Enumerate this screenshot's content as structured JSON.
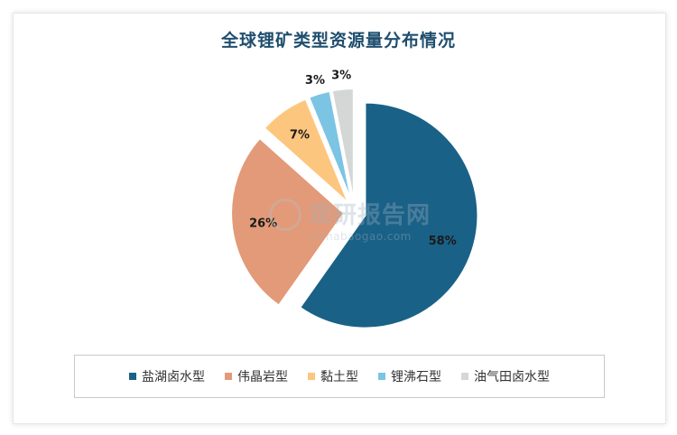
{
  "chart_data": {
    "type": "pie",
    "title": "全球锂矿类型资源量分布情况",
    "categories": [
      "盐湖卤水型",
      "伟晶岩型",
      "黏土型",
      "锂沸石型",
      "油气田卤水型"
    ],
    "values": [
      58,
      26,
      7,
      3,
      3
    ],
    "labels": [
      "58%",
      "26%",
      "7%",
      "3%",
      "3%"
    ],
    "colors": [
      "#1a6187",
      "#e29a78",
      "#fdc67f",
      "#7cc4e4",
      "#d5d7d7"
    ],
    "exploded": true,
    "legend_position": "bottom"
  },
  "watermark": {
    "main": "观研报告网",
    "sub": "chinabaogao.com"
  }
}
